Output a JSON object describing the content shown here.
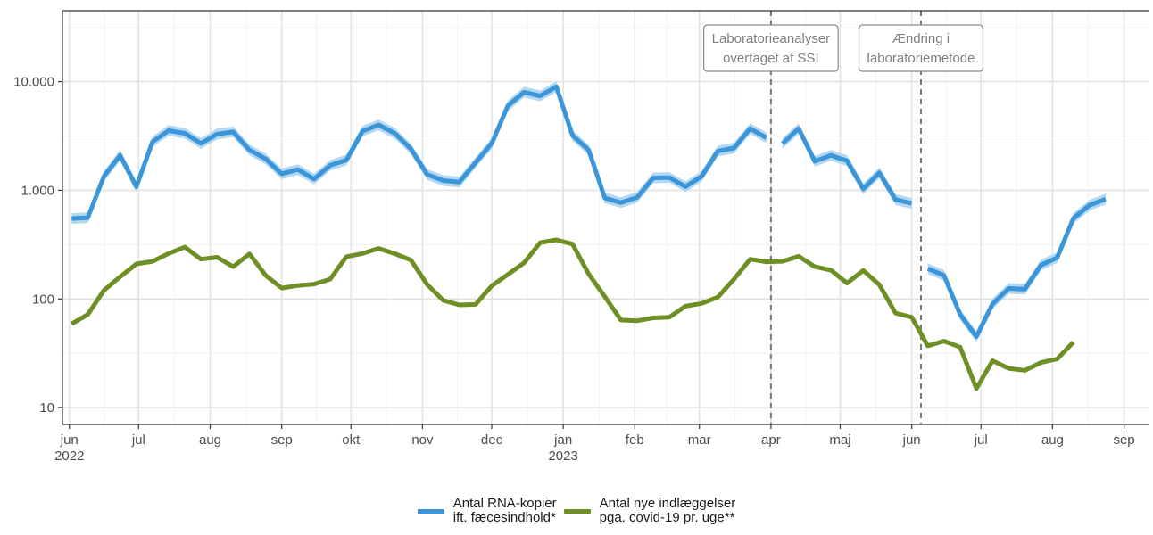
{
  "chart_data": {
    "type": "line",
    "y_scale": "log10",
    "ylim": [
      7,
      45000
    ],
    "y_ticks": [
      {
        "value": 10,
        "label": "10"
      },
      {
        "value": 100,
        "label": "100"
      },
      {
        "value": 1000,
        "label": "1.000"
      },
      {
        "value": 10000,
        "label": "10.000"
      }
    ],
    "x_ticks": [
      {
        "date": "2022-06-01",
        "label": "jun",
        "year": "2022"
      },
      {
        "date": "2022-07-01",
        "label": "jul"
      },
      {
        "date": "2022-08-01",
        "label": "aug"
      },
      {
        "date": "2022-09-01",
        "label": "sep"
      },
      {
        "date": "2022-10-01",
        "label": "okt"
      },
      {
        "date": "2022-11-01",
        "label": "nov"
      },
      {
        "date": "2022-12-01",
        "label": "dec"
      },
      {
        "date": "2023-01-01",
        "label": "jan",
        "year": "2023"
      },
      {
        "date": "2023-02-01",
        "label": "feb"
      },
      {
        "date": "2023-03-01",
        "label": "mar"
      },
      {
        "date": "2023-04-01",
        "label": "apr"
      },
      {
        "date": "2023-05-01",
        "label": "maj"
      },
      {
        "date": "2023-06-01",
        "label": "jun"
      },
      {
        "date": "2023-07-01",
        "label": "jul"
      },
      {
        "date": "2023-08-01",
        "label": "aug"
      },
      {
        "date": "2023-09-01",
        "label": "sep"
      }
    ],
    "xlim": [
      "2022-05-29",
      "2023-09-12"
    ],
    "grid": true,
    "legend_position": "bottom",
    "annotations": [
      {
        "date": "2023-04-01",
        "text": "Laboratorieanalyser\novertaget af SSI"
      },
      {
        "date": "2023-06-05",
        "text": "Ændring i\nlaboratoriemetode"
      }
    ],
    "series": [
      {
        "name": "Antal RNA-kopier\nift. fæcesindhold*",
        "color": "#3a96d8",
        "band_color": "#b5d8f2",
        "band_rel": 0.12,
        "segments": [
          [
            [
              "2022-06-02",
              550
            ],
            [
              "2022-06-09",
              560
            ],
            [
              "2022-06-16",
              1350
            ],
            [
              "2022-06-23",
              2100
            ],
            [
              "2022-06-30",
              1080
            ],
            [
              "2022-07-07",
              2800
            ],
            [
              "2022-07-14",
              3550
            ],
            [
              "2022-07-21",
              3350
            ],
            [
              "2022-07-28",
              2700
            ],
            [
              "2022-08-04",
              3300
            ],
            [
              "2022-08-11",
              3450
            ],
            [
              "2022-08-18",
              2350
            ],
            [
              "2022-08-25",
              1950
            ],
            [
              "2022-09-01",
              1420
            ],
            [
              "2022-09-08",
              1550
            ],
            [
              "2022-09-15",
              1270
            ],
            [
              "2022-09-22",
              1700
            ],
            [
              "2022-09-29",
              1900
            ],
            [
              "2022-10-06",
              3500
            ],
            [
              "2022-10-13",
              4000
            ],
            [
              "2022-10-20",
              3350
            ],
            [
              "2022-10-27",
              2400
            ],
            [
              "2022-11-03",
              1400
            ],
            [
              "2022-11-10",
              1230
            ],
            [
              "2022-11-17",
              1190
            ],
            [
              "2022-11-24",
              1800
            ],
            [
              "2022-12-01",
              2700
            ],
            [
              "2022-12-08",
              6000
            ],
            [
              "2022-12-15",
              8000
            ],
            [
              "2022-12-22",
              7400
            ],
            [
              "2022-12-29",
              9000
            ],
            [
              "2023-01-05",
              3200
            ],
            [
              "2023-01-12",
              2350
            ],
            [
              "2023-01-19",
              850
            ],
            [
              "2023-01-26",
              770
            ],
            [
              "2023-02-02",
              860
            ],
            [
              "2023-02-09",
              1300
            ],
            [
              "2023-02-16",
              1310
            ],
            [
              "2023-02-23",
              1080
            ],
            [
              "2023-03-02",
              1350
            ],
            [
              "2023-03-09",
              2300
            ],
            [
              "2023-03-16",
              2450
            ],
            [
              "2023-03-23",
              3700
            ],
            [
              "2023-03-30",
              3050
            ]
          ],
          [
            [
              "2023-04-06",
              2700
            ],
            [
              "2023-04-13",
              3700
            ],
            [
              "2023-04-20",
              1850
            ],
            [
              "2023-04-27",
              2100
            ],
            [
              "2023-05-04",
              1870
            ],
            [
              "2023-05-11",
              1030
            ],
            [
              "2023-05-18",
              1450
            ],
            [
              "2023-05-25",
              820
            ],
            [
              "2023-06-01",
              760
            ]
          ],
          [
            [
              "2023-06-08",
              190
            ],
            [
              "2023-06-15",
              165
            ],
            [
              "2023-06-22",
              72
            ],
            [
              "2023-06-29",
              45
            ],
            [
              "2023-07-06",
              90
            ],
            [
              "2023-07-13",
              125
            ],
            [
              "2023-07-20",
              123
            ],
            [
              "2023-07-27",
              205
            ],
            [
              "2023-08-03",
              240
            ],
            [
              "2023-08-10",
              550
            ],
            [
              "2023-08-17",
              730
            ],
            [
              "2023-08-24",
              830
            ]
          ]
        ]
      },
      {
        "name": "Antal nye indlæggelser\npga. covid-19 pr. uge**",
        "color": "#6d8f24",
        "segments": [
          [
            [
              "2022-06-02",
              59
            ],
            [
              "2022-06-09",
              72
            ],
            [
              "2022-06-16",
              120
            ],
            [
              "2022-06-23",
              160
            ],
            [
              "2022-06-30",
              210
            ],
            [
              "2022-07-07",
              222
            ],
            [
              "2022-07-14",
              262
            ],
            [
              "2022-07-21",
              300
            ],
            [
              "2022-07-28",
              232
            ],
            [
              "2022-08-04",
              242
            ],
            [
              "2022-08-11",
              198
            ],
            [
              "2022-08-18",
              260
            ],
            [
              "2022-08-25",
              165
            ],
            [
              "2022-09-01",
              126
            ],
            [
              "2022-09-08",
              133
            ],
            [
              "2022-09-15",
              137
            ],
            [
              "2022-09-22",
              152
            ],
            [
              "2022-09-29",
              245
            ],
            [
              "2022-10-06",
              262
            ],
            [
              "2022-10-13",
              292
            ],
            [
              "2022-10-20",
              261
            ],
            [
              "2022-10-27",
              228
            ],
            [
              "2022-11-03",
              136
            ],
            [
              "2022-11-10",
              97
            ],
            [
              "2022-11-17",
              88
            ],
            [
              "2022-11-24",
              89
            ],
            [
              "2022-12-01",
              132
            ],
            [
              "2022-12-08",
              168
            ],
            [
              "2022-12-15",
              215
            ],
            [
              "2022-12-22",
              330
            ],
            [
              "2022-12-29",
              350
            ],
            [
              "2023-01-05",
              320
            ],
            [
              "2023-01-12",
              170
            ],
            [
              "2023-01-19",
              105
            ],
            [
              "2023-01-26",
              64
            ],
            [
              "2023-02-02",
              63
            ],
            [
              "2023-02-09",
              67
            ],
            [
              "2023-02-16",
              68
            ],
            [
              "2023-02-23",
              86
            ],
            [
              "2023-03-02",
              91
            ],
            [
              "2023-03-09",
              104
            ],
            [
              "2023-03-16",
              152
            ],
            [
              "2023-03-23",
              232
            ],
            [
              "2023-03-30",
              220
            ],
            [
              "2023-04-06",
              222
            ],
            [
              "2023-04-13",
              247
            ],
            [
              "2023-04-20",
              198
            ],
            [
              "2023-04-27",
              184
            ],
            [
              "2023-05-04",
              140
            ],
            [
              "2023-05-11",
              183
            ],
            [
              "2023-05-18",
              135
            ],
            [
              "2023-05-25",
              74
            ],
            [
              "2023-06-01",
              68
            ],
            [
              "2023-06-08",
              37
            ],
            [
              "2023-06-15",
              41
            ],
            [
              "2023-06-22",
              36
            ],
            [
              "2023-06-29",
              15
            ],
            [
              "2023-07-06",
              27
            ],
            [
              "2023-07-13",
              23
            ],
            [
              "2023-07-20",
              22
            ],
            [
              "2023-07-27",
              26
            ],
            [
              "2023-08-03",
              28
            ],
            [
              "2023-08-10",
              40
            ]
          ]
        ]
      }
    ]
  }
}
